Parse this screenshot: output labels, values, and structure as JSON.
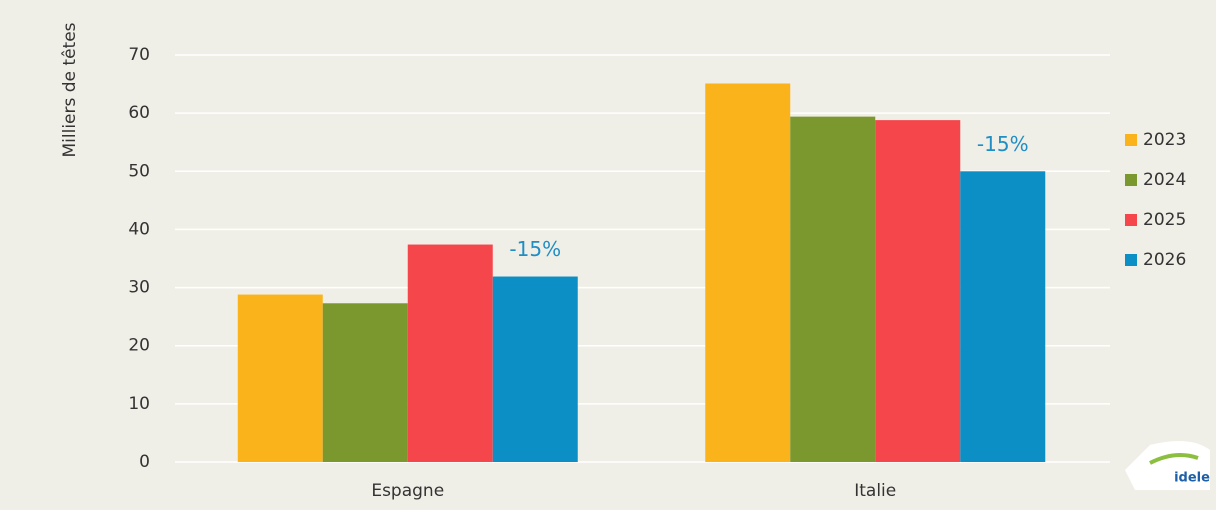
{
  "chart_data": {
    "type": "bar",
    "y_label": "Milliers de têtes",
    "categories": [
      "Espagne",
      "Italie"
    ],
    "series": [
      {
        "name": "2023",
        "color": "#fbb31c",
        "values": [
          28.8,
          65.1
        ]
      },
      {
        "name": "2024",
        "color": "#7b982e",
        "values": [
          27.3,
          59.4
        ]
      },
      {
        "name": "2025",
        "color": "#f5464c",
        "values": [
          37.4,
          58.8
        ]
      },
      {
        "name": "2026",
        "color": "#0b8fc5",
        "values": [
          31.9,
          50.0
        ]
      }
    ],
    "annotations": [
      "-15%",
      "-15%"
    ],
    "annotation_color": "#1f8ec4",
    "ylim": [
      0,
      70
    ],
    "yticks": [
      0,
      10,
      20,
      30,
      40,
      50,
      60,
      70
    ],
    "grid": true,
    "legend": "right"
  },
  "logo": "idele"
}
